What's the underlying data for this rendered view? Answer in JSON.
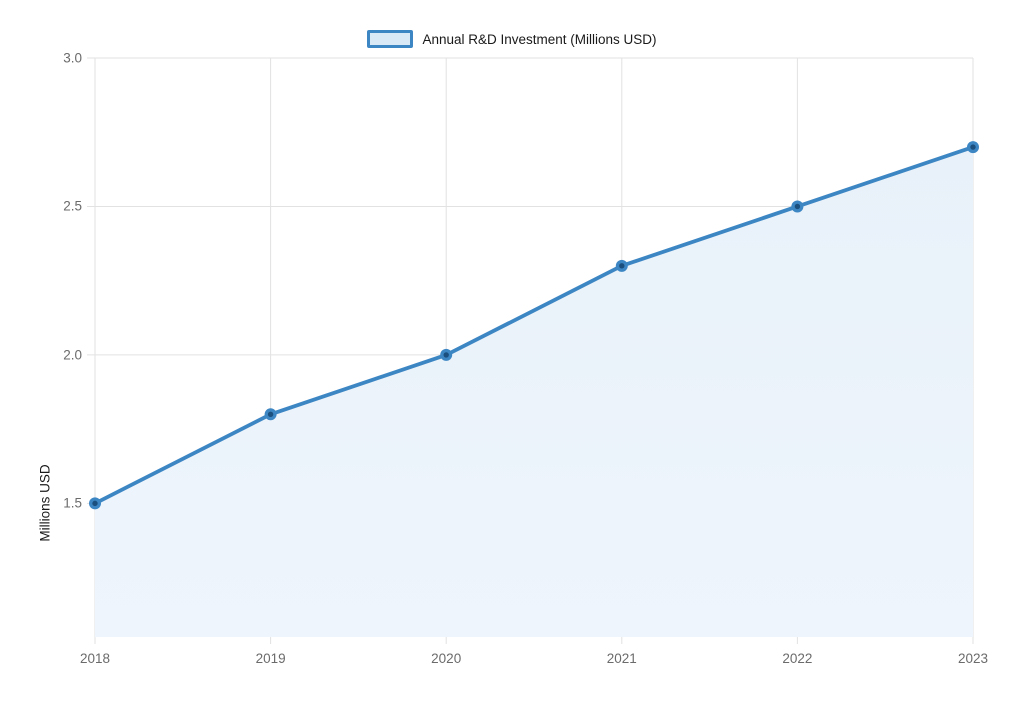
{
  "legend": {
    "label": "Annual R&D Investment (Millions USD)"
  },
  "y_axis": {
    "title": "Millions USD"
  },
  "colors": {
    "line": "#3d86c4",
    "marker_center": "#1b4f7e",
    "area_top": "#e8f1f9",
    "area_bottom": "#eff5fc",
    "grid": "#e2e2e2",
    "tick_label": "#6b6b6b",
    "legend_text": "#1a1a1a",
    "axis_title": "#1a1a1a",
    "legend_swatch_fill": "#d9e9f6"
  },
  "chart_data": {
    "type": "area",
    "x": [
      2018,
      2019,
      2020,
      2021,
      2022,
      2023
    ],
    "x_tick_labels": [
      "2018",
      "2019",
      "2020",
      "2021",
      "2022",
      "2023"
    ],
    "series": [
      {
        "name": "Annual R&D Investment (Millions USD)",
        "values": [
          1.5,
          1.8,
          2.0,
          2.3,
          2.5,
          2.7
        ]
      }
    ],
    "title": "",
    "xlabel": "",
    "ylabel": "Millions USD",
    "ylim": [
      1.05,
      3.0
    ],
    "yticks": [
      3.0,
      2.5,
      2.0,
      1.5
    ],
    "ytick_labels": [
      "3.0",
      "2.5",
      "2.0",
      "1.5"
    ],
    "grid": true,
    "legend_position": "top-center",
    "markers": true
  }
}
